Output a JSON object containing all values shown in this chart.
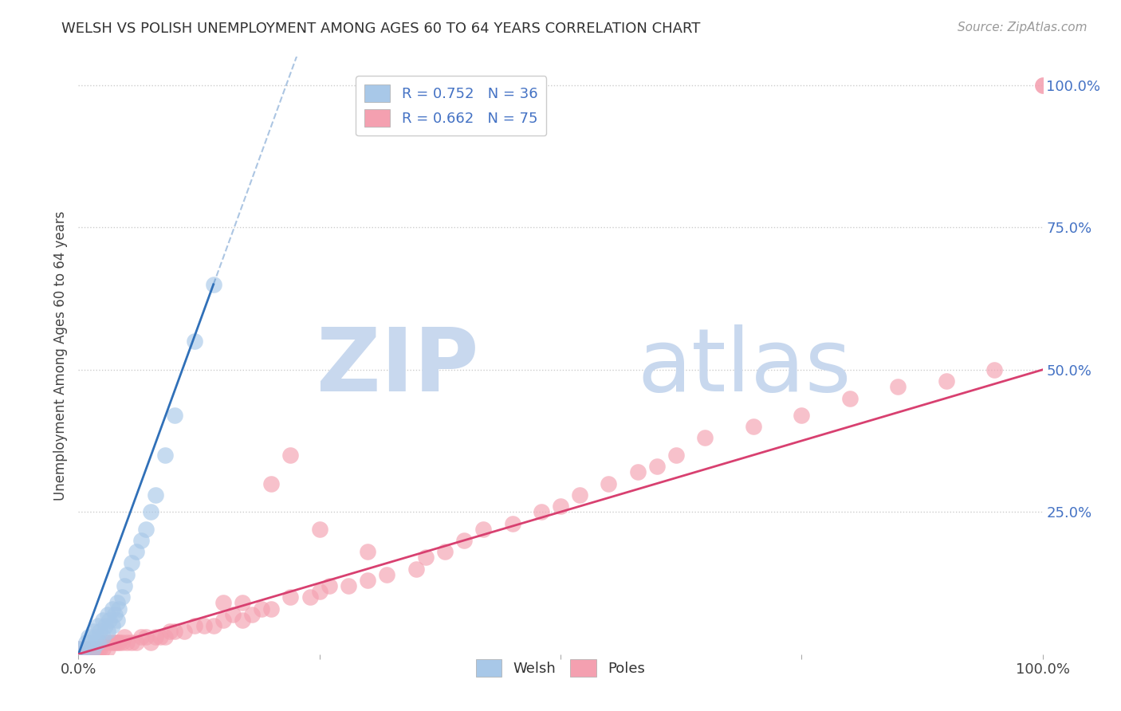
{
  "title": "WELSH VS POLISH UNEMPLOYMENT AMONG AGES 60 TO 64 YEARS CORRELATION CHART",
  "source_text": "Source: ZipAtlas.com",
  "ylabel": "Unemployment Among Ages 60 to 64 years",
  "xlim": [
    0,
    1.0
  ],
  "ylim": [
    0.0,
    1.05
  ],
  "xticks": [
    0.0,
    0.25,
    0.5,
    0.75,
    1.0
  ],
  "xticklabels": [
    "0.0%",
    "",
    "",
    "",
    "100.0%"
  ],
  "ytick_positions": [
    0.25,
    0.5,
    0.75,
    1.0
  ],
  "ytick_labels_right": [
    "25.0%",
    "50.0%",
    "75.0%",
    "100.0%"
  ],
  "welsh_color": "#a8c8e8",
  "poles_color": "#f4a0b0",
  "welsh_line_color": "#3070b8",
  "poles_line_color": "#d84070",
  "legend_welsh_label": "R = 0.752   N = 36",
  "legend_poles_label": "R = 0.662   N = 75",
  "watermark_zip": "ZIP",
  "watermark_atlas": "atlas",
  "watermark_color": "#c8d8ee",
  "grid_color": "#cccccc",
  "background_color": "#ffffff",
  "welsh_x": [
    0.0,
    0.005,
    0.008,
    0.01,
    0.012,
    0.015,
    0.015,
    0.018,
    0.02,
    0.02,
    0.022,
    0.025,
    0.025,
    0.028,
    0.03,
    0.03,
    0.032,
    0.035,
    0.035,
    0.038,
    0.04,
    0.04,
    0.042,
    0.045,
    0.048,
    0.05,
    0.055,
    0.06,
    0.065,
    0.07,
    0.075,
    0.08,
    0.09,
    0.1,
    0.12,
    0.14
  ],
  "welsh_y": [
    0.01,
    0.01,
    0.02,
    0.03,
    0.02,
    0.01,
    0.04,
    0.03,
    0.02,
    0.05,
    0.04,
    0.03,
    0.06,
    0.05,
    0.04,
    0.07,
    0.06,
    0.05,
    0.08,
    0.07,
    0.06,
    0.09,
    0.08,
    0.1,
    0.12,
    0.14,
    0.16,
    0.18,
    0.2,
    0.22,
    0.25,
    0.28,
    0.35,
    0.42,
    0.55,
    0.65
  ],
  "poles_x": [
    0.0,
    0.005,
    0.008,
    0.01,
    0.012,
    0.015,
    0.018,
    0.02,
    0.022,
    0.025,
    0.028,
    0.03,
    0.032,
    0.035,
    0.038,
    0.04,
    0.042,
    0.045,
    0.048,
    0.05,
    0.055,
    0.06,
    0.065,
    0.07,
    0.075,
    0.08,
    0.085,
    0.09,
    0.095,
    0.1,
    0.11,
    0.12,
    0.13,
    0.14,
    0.15,
    0.16,
    0.17,
    0.18,
    0.19,
    0.2,
    0.22,
    0.24,
    0.25,
    0.26,
    0.28,
    0.3,
    0.32,
    0.35,
    0.36,
    0.38,
    0.4,
    0.42,
    0.45,
    0.48,
    0.5,
    0.52,
    0.55,
    0.58,
    0.6,
    0.62,
    0.65,
    0.7,
    0.75,
    0.8,
    0.85,
    0.9,
    0.95,
    1.0,
    0.2,
    0.22,
    0.25,
    0.15,
    0.17,
    0.3,
    1.0
  ],
  "poles_y": [
    0.01,
    0.01,
    0.01,
    0.01,
    0.01,
    0.01,
    0.01,
    0.01,
    0.01,
    0.01,
    0.02,
    0.01,
    0.02,
    0.02,
    0.02,
    0.02,
    0.02,
    0.02,
    0.03,
    0.02,
    0.02,
    0.02,
    0.03,
    0.03,
    0.02,
    0.03,
    0.03,
    0.03,
    0.04,
    0.04,
    0.04,
    0.05,
    0.05,
    0.05,
    0.06,
    0.07,
    0.06,
    0.07,
    0.08,
    0.08,
    0.1,
    0.1,
    0.11,
    0.12,
    0.12,
    0.13,
    0.14,
    0.15,
    0.17,
    0.18,
    0.2,
    0.22,
    0.23,
    0.25,
    0.26,
    0.28,
    0.3,
    0.32,
    0.33,
    0.35,
    0.38,
    0.4,
    0.42,
    0.45,
    0.47,
    0.48,
    0.5,
    1.0,
    0.3,
    0.35,
    0.22,
    0.09,
    0.09,
    0.18,
    1.0
  ],
  "welsh_line_x": [
    0.0,
    0.14
  ],
  "welsh_line_y": [
    0.0,
    0.65
  ],
  "poles_line_x": [
    0.0,
    1.0
  ],
  "poles_line_y": [
    0.0,
    0.5
  ]
}
